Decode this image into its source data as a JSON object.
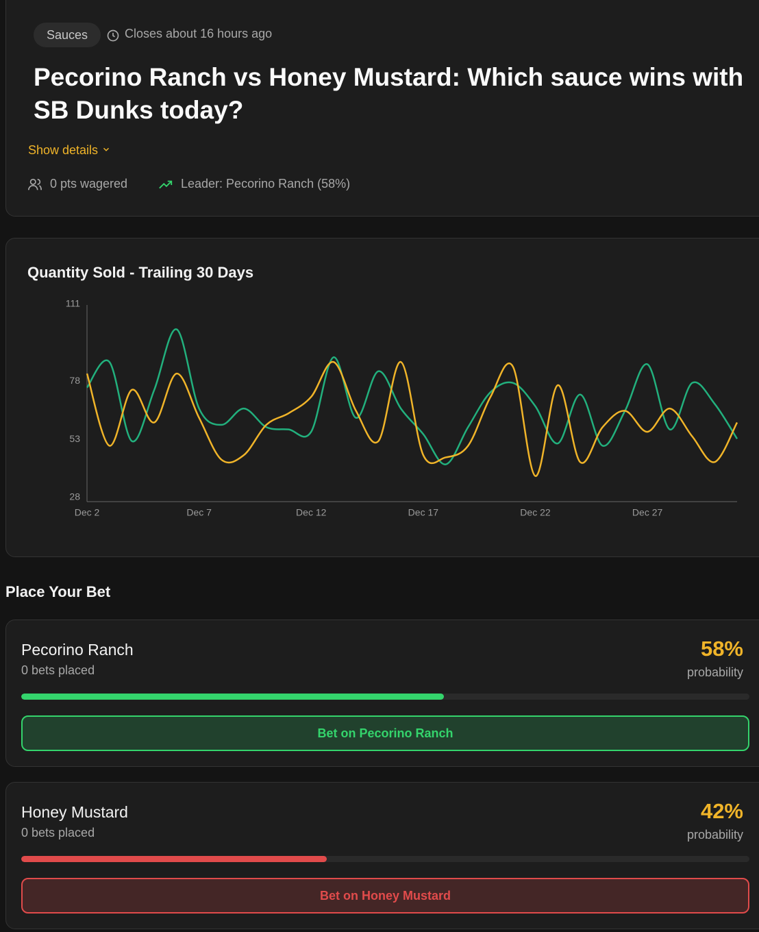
{
  "header": {
    "category": "Sauces",
    "closes": "Closes about 16 hours ago",
    "title": "Pecorino Ranch vs Honey Mustard: Which sauce wins with SB Dunks today?",
    "show_details": "Show details",
    "wagered": "0 pts wagered",
    "leader": "Leader: Pecorino Ranch (58%)"
  },
  "chart_data": {
    "type": "line",
    "title": "Quantity Sold - Trailing 30 Days",
    "categories": [
      "Dec 2",
      null,
      null,
      null,
      null,
      "Dec 7",
      null,
      null,
      null,
      null,
      "Dec 12",
      null,
      null,
      null,
      null,
      "Dec 17",
      null,
      null,
      null,
      null,
      "Dec 22",
      null,
      null,
      null,
      null,
      "Dec 27",
      null,
      null,
      null,
      null
    ],
    "series": [
      {
        "color": "#22b07d",
        "values": [
          77,
          88,
          54,
          76,
          102,
          68,
          61,
          68,
          60,
          59,
          58,
          90,
          64,
          84,
          68,
          57,
          44,
          60,
          75,
          79,
          69,
          53,
          74,
          52,
          67,
          87,
          59,
          79,
          70,
          55
        ]
      },
      {
        "color": "#f0b429",
        "values": [
          83,
          52,
          76,
          62,
          83,
          64,
          46,
          48,
          61,
          66,
          73,
          88,
          67,
          54,
          88,
          48,
          47,
          52,
          73,
          86,
          39,
          78,
          45,
          60,
          67,
          58,
          68,
          56,
          45,
          62
        ]
      }
    ],
    "ylim": [
      28,
      111
    ],
    "yticks": [
      28,
      53,
      78,
      111
    ],
    "grid": false
  },
  "bets": {
    "title": "Place Your Bet",
    "options": [
      {
        "name": "Pecorino Ranch",
        "bets": "0 bets placed",
        "probability": 58,
        "value_label": "58%",
        "caption": "probability",
        "button": "Bet on Pecorino Ranch",
        "color": "#34d46c"
      },
      {
        "name": "Honey Mustard",
        "bets": "0 bets placed",
        "probability": 42,
        "value_label": "42%",
        "caption": "probability",
        "button": "Bet on Honey Mustard",
        "color": "#e14b4b"
      }
    ]
  }
}
